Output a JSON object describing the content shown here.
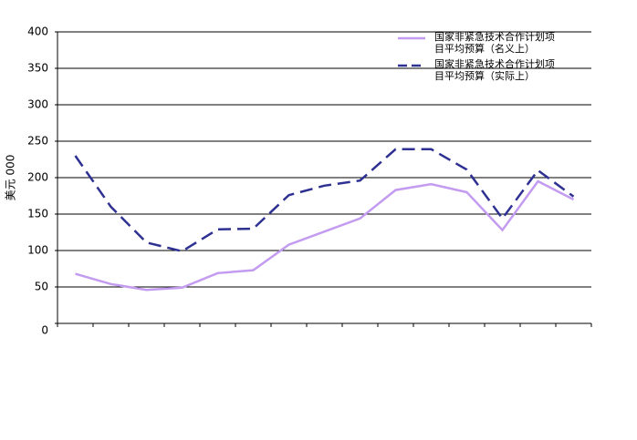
{
  "chart_data": {
    "type": "line",
    "ylabel": "美元 000",
    "categories": [
      null,
      null,
      null,
      null,
      null,
      null,
      null,
      null,
      null,
      null,
      null,
      null,
      null,
      null,
      null
    ],
    "series": [
      {
        "name": "国家非紧急技术合作计划项目平均预算（名义上）",
        "color": "#c39bf0",
        "dash": false,
        "values": [
          68,
          54,
          46,
          49,
          69,
          73,
          108,
          126,
          144,
          183,
          191,
          180,
          128,
          195,
          170
        ]
      },
      {
        "name": "国家非紧急技术合作计划项目平均预算（实际上）",
        "color": "#2e3192",
        "dash": true,
        "values": [
          230,
          160,
          111,
          99,
          129,
          130,
          176,
          189,
          196,
          239,
          239,
          211,
          144,
          210,
          174
        ]
      }
    ],
    "ylim": [
      0,
      400
    ],
    "yticks": [
      0,
      50,
      100,
      150,
      200,
      250,
      300,
      350,
      400
    ],
    "grid": true,
    "legend": "top-right"
  }
}
